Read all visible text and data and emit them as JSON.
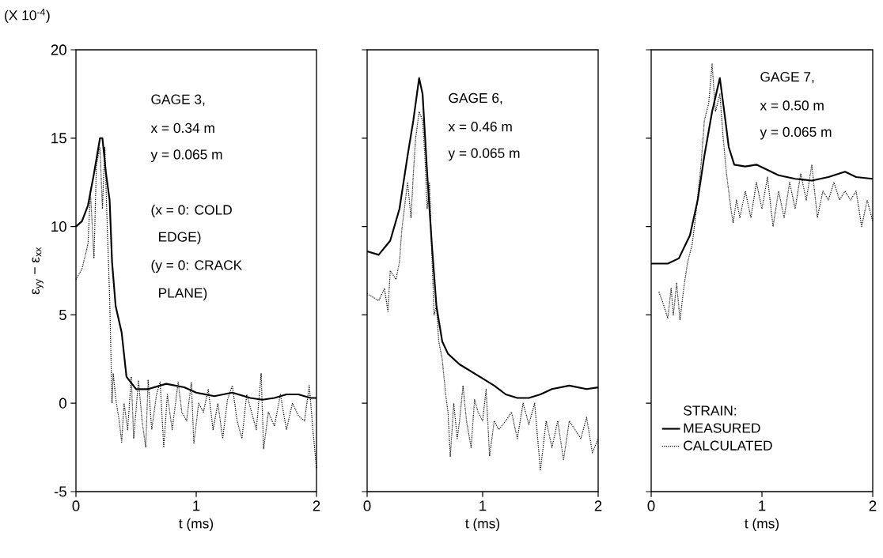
{
  "chart_data": [
    {
      "type": "line",
      "xlabel": "t (ms)",
      "ylabel": "ε$_{yy}$ − ε$_{xx}$",
      "xlim": [
        0,
        2
      ],
      "ylim": [
        -5,
        20
      ],
      "xticks": [
        0,
        1,
        2
      ],
      "yticks": [
        -5,
        0,
        5,
        10,
        15,
        20
      ],
      "annotations": [
        "(X 10$^{-4}$)",
        "GAGE 3,",
        "x = 0.34 m",
        "y = 0.065 m",
        "(x = 0: COLD",
        "EDGE)",
        "(y = 0: CRACK",
        "PLANE)"
      ],
      "series": [
        {
          "color": "#000000",
          "line_style": "solid",
          "x": [
            0,
            0.05,
            0.1,
            0.15,
            0.2,
            0.22,
            0.25,
            0.28,
            0.3,
            0.33,
            0.38,
            0.42,
            0.5,
            0.6,
            0.75,
            0.9,
            1.0,
            1.15,
            1.3,
            1.45,
            1.55,
            1.65,
            1.75,
            1.85,
            1.95,
            2
          ],
          "values": [
            10,
            10.3,
            11.2,
            13,
            15,
            15,
            13,
            11.5,
            8,
            5.5,
            4,
            1.5,
            0.8,
            0.8,
            1.1,
            0.9,
            0.6,
            0.4,
            0.6,
            0.3,
            0.2,
            0.3,
            0.5,
            0.5,
            0.3,
            0.3
          ]
        },
        {
          "color": "#000000",
          "line_style": "dotted",
          "x": [
            0,
            0.05,
            0.1,
            0.12,
            0.15,
            0.17,
            0.2,
            0.22,
            0.24,
            0.26,
            0.28,
            0.3,
            0.31,
            0.33,
            0.36,
            0.38,
            0.4,
            0.43,
            0.46,
            0.48,
            0.52,
            0.55,
            0.58,
            0.6,
            0.63,
            0.67,
            0.7,
            0.73,
            0.76,
            0.8,
            0.85,
            0.88,
            0.92,
            0.96,
            0.98,
            1.02,
            1.06,
            1.1,
            1.14,
            1.18,
            1.22,
            1.26,
            1.3,
            1.34,
            1.38,
            1.42,
            1.46,
            1.5,
            1.54,
            1.56,
            1.6,
            1.65,
            1.7,
            1.75,
            1.8,
            1.85,
            1.9,
            1.94,
            1.97,
            2
          ],
          "values": [
            7,
            7.6,
            9,
            12,
            8.2,
            13.5,
            14.5,
            11,
            14.5,
            10,
            6,
            0,
            1.7,
            0.3,
            -1,
            -2.2,
            0,
            -1.5,
            1.5,
            -2,
            1.3,
            -1,
            -2.5,
            1.3,
            -1.5,
            0.5,
            1.2,
            -2.5,
            0.5,
            -1.5,
            1.2,
            -0.5,
            -1,
            1.2,
            -2.3,
            0,
            -0.5,
            0.8,
            -1.5,
            0,
            -2,
            0.2,
            1,
            -1,
            -2,
            0.5,
            -0.5,
            -1.5,
            1.7,
            -2.6,
            -0.5,
            -1.3,
            0.5,
            -1.5,
            0,
            -0.7,
            -1,
            1,
            -1.5,
            -3.7
          ]
        }
      ]
    },
    {
      "type": "line",
      "xlabel": "t (ms)",
      "xlim": [
        0,
        2
      ],
      "ylim": [
        -5,
        20
      ],
      "xticks": [
        0,
        1,
        2
      ],
      "yticks": [
        -5,
        0,
        5,
        10,
        15,
        20
      ],
      "tick_labels": "x",
      "annotations": [
        "GAGE 6,",
        "x = 0.46 m",
        "y = 0.065 m"
      ],
      "series": [
        {
          "color": "#000000",
          "line_style": "solid",
          "x": [
            0,
            0.1,
            0.2,
            0.28,
            0.35,
            0.4,
            0.45,
            0.48,
            0.52,
            0.56,
            0.6,
            0.65,
            0.7,
            0.8,
            0.9,
            1.0,
            1.1,
            1.2,
            1.3,
            1.4,
            1.5,
            1.6,
            1.75,
            1.9,
            2
          ],
          "values": [
            8.6,
            8.4,
            9.2,
            11,
            14,
            16,
            18.4,
            17.5,
            13,
            9,
            5.5,
            3.5,
            2.8,
            2.2,
            1.8,
            1.4,
            1,
            0.5,
            0.3,
            0.3,
            0.5,
            0.8,
            1.0,
            0.8,
            0.9
          ]
        },
        {
          "color": "#000000",
          "line_style": "dotted",
          "x": [
            0,
            0.05,
            0.1,
            0.15,
            0.18,
            0.2,
            0.25,
            0.28,
            0.3,
            0.35,
            0.38,
            0.4,
            0.42,
            0.45,
            0.48,
            0.5,
            0.52,
            0.54,
            0.56,
            0.58,
            0.6,
            0.62,
            0.65,
            0.68,
            0.7,
            0.72,
            0.75,
            0.78,
            0.8,
            0.83,
            0.86,
            0.9,
            0.93,
            0.96,
            1.0,
            1.03,
            1.06,
            1.1,
            1.14,
            1.2,
            1.25,
            1.3,
            1.35,
            1.4,
            1.45,
            1.5,
            1.55,
            1.6,
            1.65,
            1.7,
            1.75,
            1.8,
            1.85,
            1.9,
            1.95,
            2
          ],
          "values": [
            6.2,
            6.0,
            5.8,
            6.5,
            5.2,
            7.5,
            7,
            8,
            9.8,
            12.5,
            10.5,
            13,
            15,
            16.5,
            16,
            14,
            11,
            12.5,
            8.5,
            5,
            5.5,
            3.5,
            2.5,
            0.5,
            -0.5,
            -3,
            0,
            -2,
            -1,
            1,
            -1,
            -2.5,
            0.2,
            -0.5,
            -1,
            0.8,
            -3,
            -1,
            -1.5,
            -1,
            -0.5,
            -2,
            0,
            -1.2,
            0,
            -3.8,
            -1,
            -2.5,
            -1,
            -3.2,
            -1,
            -1.5,
            -2,
            -0.8,
            -2.8,
            -2
          ]
        }
      ]
    },
    {
      "type": "line",
      "xlabel": "t (ms)",
      "xlim": [
        0,
        2
      ],
      "ylim": [
        -5,
        20
      ],
      "xticks": [
        0,
        1,
        2
      ],
      "yticks": [
        -5,
        0,
        5,
        10,
        15,
        20
      ],
      "tick_labels": "x",
      "legend": "bottom left",
      "legend_title": "STRAIN:",
      "annotations": [
        "GAGE 7,",
        "x = 0.50 m",
        "y = 0.065 m"
      ],
      "series": [
        {
          "name": "MEASURED",
          "color": "#000000",
          "line_style": "solid",
          "x": [
            0,
            0.15,
            0.25,
            0.35,
            0.42,
            0.48,
            0.55,
            0.62,
            0.67,
            0.7,
            0.75,
            0.85,
            0.95,
            1.05,
            1.15,
            1.3,
            1.45,
            1.6,
            1.75,
            1.85,
            2
          ],
          "values": [
            7.9,
            7.9,
            8.2,
            9.5,
            11.5,
            14,
            16.5,
            18.4,
            16,
            14.5,
            13.5,
            13.4,
            13.5,
            13.2,
            12.9,
            12.7,
            12.6,
            12.8,
            13.1,
            12.8,
            12.7
          ]
        },
        {
          "name": "CALCULATED",
          "color": "#000000",
          "line_style": "dotted",
          "x": [
            0.07,
            0.1,
            0.15,
            0.18,
            0.2,
            0.23,
            0.26,
            0.3,
            0.33,
            0.37,
            0.4,
            0.45,
            0.48,
            0.52,
            0.55,
            0.58,
            0.62,
            0.65,
            0.68,
            0.72,
            0.74,
            0.77,
            0.8,
            0.85,
            0.9,
            0.95,
            1.0,
            1.05,
            1.1,
            1.15,
            1.2,
            1.25,
            1.3,
            1.35,
            1.4,
            1.45,
            1.5,
            1.55,
            1.6,
            1.65,
            1.7,
            1.75,
            1.8,
            1.85,
            1.9,
            1.95,
            2
          ],
          "values": [
            6.3,
            5.8,
            4.8,
            6.5,
            5,
            6.8,
            4.7,
            6.8,
            8,
            9,
            10.5,
            13.5,
            16,
            17,
            19.2,
            16.5,
            17.5,
            15,
            13,
            11,
            10.2,
            11.5,
            10.5,
            12,
            10.5,
            12.5,
            11,
            12.8,
            10,
            12,
            10.5,
            12.5,
            11,
            13,
            11.5,
            13.5,
            10.5,
            12,
            11.5,
            12.5,
            11.5,
            12,
            11.5,
            12,
            10,
            11.5,
            10.3
          ]
        }
      ]
    }
  ]
}
